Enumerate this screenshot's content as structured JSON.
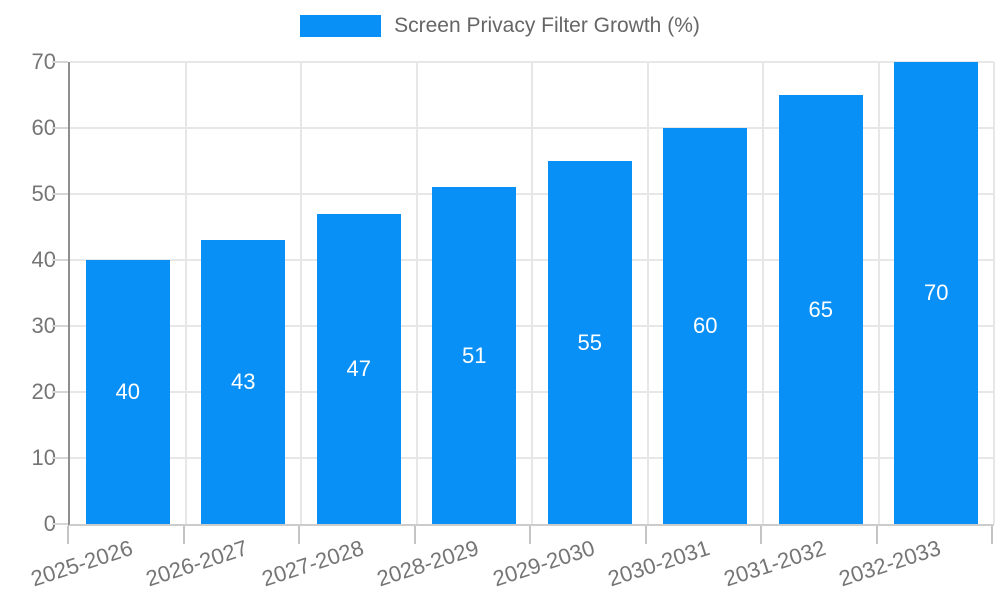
{
  "legend": {
    "label": "Screen Privacy Filter Growth (%)"
  },
  "chart_data": {
    "type": "bar",
    "title": "Screen Privacy Filter Growth (%)",
    "series_name": "Screen Privacy Filter Growth (%)",
    "categories": [
      "2025-2026",
      "2026-2027",
      "2027-2028",
      "2028-2029",
      "2029-2030",
      "2030-2031",
      "2031-2032",
      "2032-2033"
    ],
    "values": [
      40,
      43,
      47,
      51,
      55,
      60,
      65,
      70
    ],
    "xlabel": "",
    "ylabel": "",
    "ylim": [
      0,
      70
    ],
    "ytick_step": 10,
    "yticks": [
      0,
      10,
      20,
      30,
      40,
      50,
      60,
      70
    ],
    "grid": true,
    "legend_position": "top",
    "bar_labels_inside": true,
    "colors": {
      "bar": "#0990f7",
      "bar_label": "#ffffff",
      "grid": "#e7e7e7",
      "y_axis_line": "#8e8e8e",
      "x_axis_line": "#cccccc",
      "tick": "#c4c4c4",
      "tick_label": "#757575",
      "legend_text": "#666666",
      "background": "#ffffff"
    }
  }
}
